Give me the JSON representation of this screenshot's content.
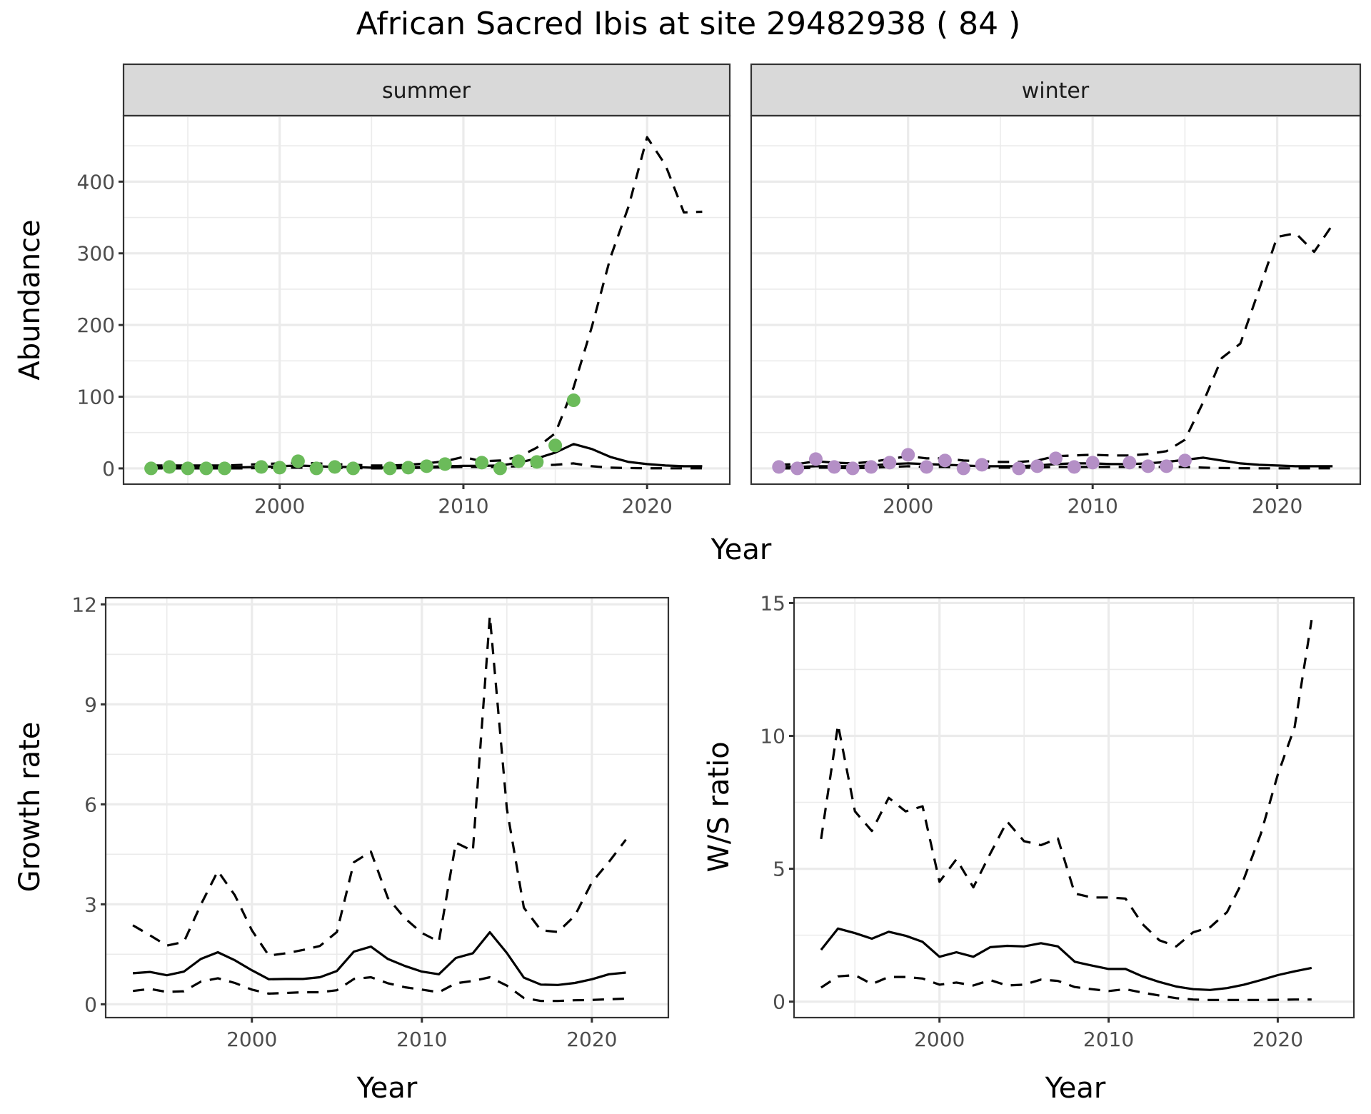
{
  "chart_data": {
    "title": "African Sacred Ibis at site 29482938 ( 84 )",
    "panels": [
      {
        "id": "abundance",
        "type": "line+scatter",
        "facets": [
          "summer",
          "winter"
        ],
        "xlabel": "Year",
        "ylabel": "Abundance",
        "xlim": [
          1991.5,
          2024.5
        ],
        "ylim": [
          -22,
          492
        ],
        "xticks": [
          2000,
          2010,
          2020
        ],
        "yticks": [
          0,
          100,
          200,
          300,
          400
        ],
        "grid": true,
        "summer": {
          "point_color": "#6bbb5a",
          "points": {
            "x": [
              1993,
              1994,
              1995,
              1996,
              1997,
              1999,
              2000,
              2001,
              2002,
              2003,
              2004,
              2006,
              2007,
              2008,
              2009,
              2011,
              2012,
              2013,
              2014,
              2015,
              2016
            ],
            "y": [
              0,
              2,
              0,
              0,
              0,
              2,
              1,
              10,
              0,
              2,
              0,
              0,
              1,
              3,
              6,
              8,
              0,
              10,
              9,
              32,
              95
            ]
          },
          "x": [
            1993,
            1994,
            1995,
            1996,
            1997,
            1998,
            1999,
            2000,
            2001,
            2002,
            2003,
            2004,
            2005,
            2006,
            2007,
            2008,
            2009,
            2010,
            2011,
            2012,
            2013,
            2014,
            2015,
            2016,
            2017,
            2018,
            2019,
            2020,
            2021,
            2022,
            2023
          ],
          "mean": [
            1,
            1,
            1,
            1,
            1,
            1.5,
            2,
            3,
            4,
            3,
            2,
            2,
            1,
            1,
            1.5,
            2,
            3,
            3.5,
            3.5,
            4,
            8,
            14,
            22,
            34,
            27,
            16,
            9,
            6,
            4,
            3,
            3
          ],
          "upper": [
            4,
            4,
            4,
            4,
            4,
            5,
            6,
            7,
            8,
            7,
            6,
            5,
            4,
            4,
            5,
            7,
            10,
            16,
            10,
            11,
            16,
            29,
            49,
            113,
            198,
            294,
            366,
            462,
            423,
            357,
            358
          ],
          "lower": [
            0,
            0,
            0,
            0,
            0,
            0,
            0.5,
            1,
            1,
            1,
            0.5,
            0.5,
            0,
            0,
            0.5,
            1,
            1.5,
            2,
            2,
            2,
            3,
            4,
            5,
            7,
            3,
            1,
            0.5,
            0.2,
            0.1,
            0.1,
            0.1
          ]
        },
        "winter": {
          "point_color": "#b48fc6",
          "points": {
            "x": [
              1993,
              1994,
              1995,
              1996,
              1997,
              1998,
              1999,
              2000,
              2001,
              2002,
              2003,
              2004,
              2006,
              2007,
              2008,
              2009,
              2010,
              2012,
              2013,
              2014,
              2015
            ],
            "y": [
              2,
              0,
              13,
              2,
              0,
              2,
              8,
              19,
              2,
              11,
              0,
              5,
              0,
              3,
              14,
              2,
              8,
              8,
              3,
              3,
              11
            ]
          },
          "x": [
            1993,
            1994,
            1995,
            1996,
            1997,
            1998,
            1999,
            2000,
            2001,
            2002,
            2003,
            2004,
            2005,
            2006,
            2007,
            2008,
            2009,
            2010,
            2011,
            2012,
            2013,
            2014,
            2015,
            2016,
            2017,
            2018,
            2019,
            2020,
            2021,
            2022,
            2023
          ],
          "mean": [
            2,
            2,
            3,
            3,
            3,
            4,
            6,
            7,
            6,
            5,
            4,
            3,
            3,
            3,
            4,
            6,
            7,
            7,
            6,
            6,
            7,
            9,
            12,
            15,
            11,
            7,
            5,
            4,
            3,
            3,
            3
          ],
          "upper": [
            5,
            6,
            10,
            8,
            7,
            9,
            13,
            17,
            14,
            14,
            11,
            10,
            9,
            9,
            11,
            17,
            18,
            19,
            18,
            18,
            20,
            24,
            40,
            93,
            154,
            174,
            248,
            323,
            328,
            302,
            340
          ],
          "lower": [
            0,
            0,
            1,
            1,
            0,
            1,
            2,
            3,
            2,
            2,
            1,
            1,
            1,
            1,
            1,
            2,
            2,
            2,
            2,
            2,
            2,
            2,
            2,
            1,
            0.5,
            0.2,
            0.1,
            0.1,
            0.1,
            0.1,
            0.1
          ]
        }
      },
      {
        "id": "growth",
        "type": "line",
        "xlabel": "Year",
        "ylabel": "Growth rate",
        "xlim": [
          1991.4,
          2024.5
        ],
        "ylim": [
          -0.4,
          12.2
        ],
        "xticks": [
          2000,
          2010,
          2020
        ],
        "yticks": [
          0,
          3,
          6,
          9,
          12
        ],
        "grid": true,
        "x": [
          1993,
          1994,
          1995,
          1996,
          1997,
          1998,
          1999,
          2000,
          2001,
          2002,
          2003,
          2004,
          2005,
          2006,
          2007,
          2008,
          2009,
          2010,
          2011,
          2012,
          2013,
          2014,
          2015,
          2016,
          2017,
          2018,
          2019,
          2020,
          2021,
          2022
        ],
        "mean": [
          0.93,
          0.97,
          0.87,
          0.98,
          1.36,
          1.56,
          1.32,
          1.02,
          0.75,
          0.76,
          0.76,
          0.81,
          1.0,
          1.58,
          1.73,
          1.36,
          1.15,
          0.98,
          0.9,
          1.39,
          1.53,
          2.16,
          1.54,
          0.8,
          0.59,
          0.58,
          0.64,
          0.75,
          0.9,
          0.95
        ],
        "upper": [
          2.37,
          2.07,
          1.76,
          1.87,
          2.99,
          4.0,
          3.27,
          2.22,
          1.46,
          1.53,
          1.63,
          1.75,
          2.17,
          4.26,
          4.58,
          3.19,
          2.58,
          2.14,
          1.88,
          4.85,
          4.6,
          11.65,
          5.87,
          2.9,
          2.22,
          2.17,
          2.66,
          3.66,
          4.27,
          4.94
        ],
        "lower": [
          0.4,
          0.46,
          0.37,
          0.39,
          0.68,
          0.78,
          0.64,
          0.44,
          0.32,
          0.34,
          0.36,
          0.36,
          0.42,
          0.76,
          0.81,
          0.63,
          0.51,
          0.44,
          0.36,
          0.63,
          0.7,
          0.81,
          0.56,
          0.19,
          0.1,
          0.1,
          0.12,
          0.13,
          0.15,
          0.17
        ]
      },
      {
        "id": "ws_ratio",
        "type": "line",
        "xlabel": "Year",
        "ylabel": "W/S ratio",
        "xlim": [
          1991.4,
          2024.5
        ],
        "ylim": [
          -0.6,
          15.2
        ],
        "xticks": [
          2000,
          2010,
          2020
        ],
        "yticks": [
          0,
          5,
          10,
          15
        ],
        "grid": true,
        "x": [
          1993,
          1994,
          1995,
          1996,
          1997,
          1998,
          1999,
          2000,
          2001,
          2002,
          2003,
          2004,
          2005,
          2006,
          2007,
          2008,
          2009,
          2010,
          2011,
          2012,
          2013,
          2014,
          2015,
          2016,
          2017,
          2018,
          2019,
          2020,
          2021,
          2022
        ],
        "mean": [
          1.95,
          2.75,
          2.58,
          2.37,
          2.63,
          2.48,
          2.25,
          1.69,
          1.86,
          1.69,
          2.05,
          2.1,
          2.08,
          2.2,
          2.08,
          1.5,
          1.36,
          1.23,
          1.23,
          0.95,
          0.74,
          0.57,
          0.47,
          0.44,
          0.51,
          0.64,
          0.81,
          1.0,
          1.14,
          1.27
        ],
        "upper": [
          6.12,
          10.42,
          7.16,
          6.42,
          7.67,
          7.16,
          7.35,
          4.51,
          5.36,
          4.3,
          5.57,
          6.78,
          6.04,
          5.89,
          6.14,
          4.07,
          3.92,
          3.92,
          3.88,
          2.92,
          2.31,
          2.08,
          2.61,
          2.8,
          3.37,
          4.62,
          6.31,
          8.54,
          10.34,
          14.36
        ],
        "lower": [
          0.53,
          0.95,
          1.0,
          0.66,
          0.93,
          0.93,
          0.87,
          0.64,
          0.72,
          0.61,
          0.81,
          0.61,
          0.64,
          0.83,
          0.78,
          0.55,
          0.47,
          0.4,
          0.47,
          0.34,
          0.23,
          0.13,
          0.08,
          0.06,
          0.06,
          0.06,
          0.06,
          0.07,
          0.08,
          0.08
        ]
      }
    ]
  }
}
